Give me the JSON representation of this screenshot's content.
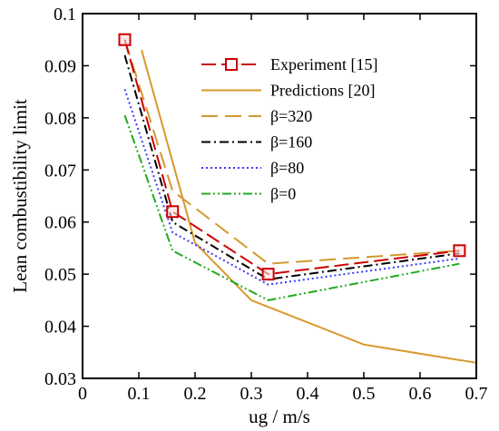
{
  "chart_data": {
    "type": "line",
    "xlabel": "ug / m/s",
    "ylabel": "Lean combustibility limit",
    "xlim": [
      0,
      0.7
    ],
    "ylim": [
      0.03,
      0.1
    ],
    "x_ticks": [
      "0",
      "0.1",
      "0.2",
      "0.3",
      "0.4",
      "0.5",
      "0.6",
      "0.7"
    ],
    "y_ticks": [
      "0.03",
      "0.04",
      "0.05",
      "0.06",
      "0.07",
      "0.08",
      "0.09",
      "0.1"
    ],
    "grid": false,
    "legend_position": "upper-right",
    "series": [
      {
        "name": "Experiment [15]",
        "color": "#cc0000",
        "dash": "long-dash",
        "marker": "square",
        "points": [
          [
            0.075,
            0.095
          ],
          [
            0.16,
            0.062
          ],
          [
            0.33,
            0.05
          ],
          [
            0.67,
            0.0545
          ]
        ]
      },
      {
        "name": "Predictions [20]",
        "color": "#d9982b",
        "dash": "solid",
        "marker": "none",
        "points": [
          [
            0.105,
            0.093
          ],
          [
            0.2,
            0.056
          ],
          [
            0.3,
            0.045
          ],
          [
            0.5,
            0.0365
          ],
          [
            0.7,
            0.033
          ]
        ]
      },
      {
        "name": "β=320",
        "color": "#d29a30",
        "dash": "dash",
        "marker": "none",
        "points": [
          [
            0.075,
            0.095
          ],
          [
            0.16,
            0.066
          ],
          [
            0.33,
            0.052
          ],
          [
            0.67,
            0.0545
          ]
        ]
      },
      {
        "name": "β=160",
        "color": "#000000",
        "dash": "dash-dot",
        "marker": "none",
        "points": [
          [
            0.075,
            0.092
          ],
          [
            0.16,
            0.06
          ],
          [
            0.33,
            0.049
          ],
          [
            0.67,
            0.054
          ]
        ]
      },
      {
        "name": "β=80",
        "color": "#3a3aff",
        "dash": "dot",
        "marker": "none",
        "points": [
          [
            0.075,
            0.0855
          ],
          [
            0.16,
            0.058
          ],
          [
            0.33,
            0.048
          ],
          [
            0.67,
            0.053
          ]
        ]
      },
      {
        "name": "β=0",
        "color": "#22aa22",
        "dash": "dash-dot-dot",
        "marker": "none",
        "points": [
          [
            0.075,
            0.0805
          ],
          [
            0.16,
            0.0545
          ],
          [
            0.33,
            0.045
          ],
          [
            0.67,
            0.052
          ]
        ]
      }
    ]
  }
}
